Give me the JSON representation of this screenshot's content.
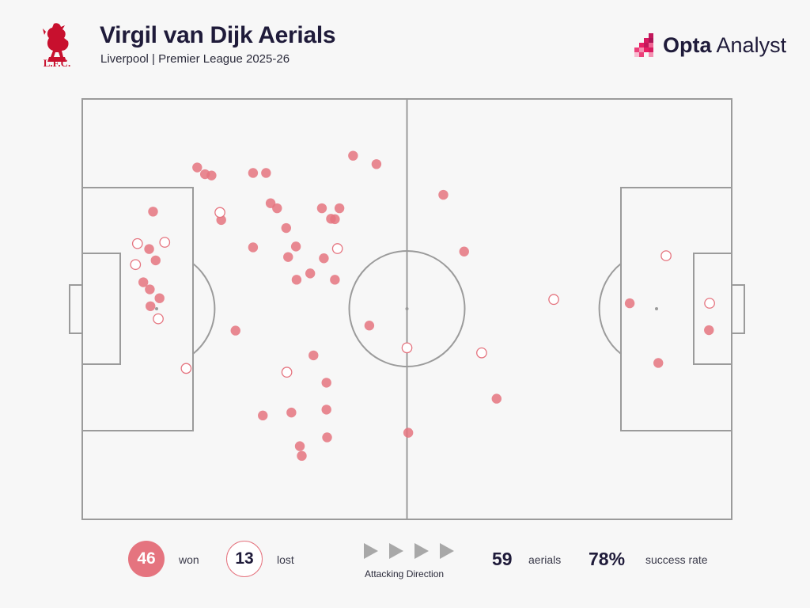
{
  "header": {
    "title": "Virgil van Dijk Aerials",
    "subtitle": "Liverpool | Premier League 2025-26",
    "crest_text": "L.F.C.",
    "brand_bold": "Opta",
    "brand_light": " Analyst"
  },
  "colors": {
    "won": "#e5747f",
    "lost_stroke": "#e5747f",
    "pitch_lines": "#9b9b9b",
    "background": "#f7f7f7"
  },
  "legend": {
    "won_count": "46",
    "won_label": "won",
    "lost_count": "13",
    "lost_label": "lost",
    "direction_label": "Attacking Direction",
    "aerials_count": "59",
    "aerials_label": "aerials",
    "success_rate": "78%",
    "success_label": "success rate"
  },
  "chart_data": {
    "type": "scatter",
    "title": "Virgil van Dijk Aerials",
    "subtitle": "Liverpool | Premier League 2025-26",
    "pitch": {
      "length": 100,
      "width": 100,
      "attacking_direction": "left-to-right"
    },
    "series": [
      {
        "name": "won",
        "points": [
          [
            17.7,
            16.3
          ],
          [
            18.9,
            17.9
          ],
          [
            19.9,
            18.2
          ],
          [
            26.3,
            17.6
          ],
          [
            28.3,
            17.6
          ],
          [
            41.7,
            13.5
          ],
          [
            45.3,
            15.5
          ],
          [
            10.9,
            26.8
          ],
          [
            21.4,
            28.8
          ],
          [
            29.0,
            24.8
          ],
          [
            30.0,
            26.0
          ],
          [
            31.4,
            30.7
          ],
          [
            36.9,
            26.0
          ],
          [
            39.6,
            26.0
          ],
          [
            38.9,
            28.6
          ],
          [
            38.3,
            28.5
          ],
          [
            10.3,
            35.7
          ],
          [
            11.3,
            38.4
          ],
          [
            26.3,
            35.3
          ],
          [
            31.7,
            37.6
          ],
          [
            32.9,
            35.1
          ],
          [
            37.2,
            37.9
          ],
          [
            35.1,
            41.5
          ],
          [
            33.0,
            43.0
          ],
          [
            38.9,
            43.0
          ],
          [
            9.4,
            43.6
          ],
          [
            10.4,
            45.3
          ],
          [
            11.9,
            47.4
          ],
          [
            10.5,
            49.3
          ],
          [
            23.6,
            55.1
          ],
          [
            44.2,
            53.9
          ],
          [
            35.6,
            61.0
          ],
          [
            37.6,
            67.5
          ],
          [
            27.8,
            75.3
          ],
          [
            32.2,
            74.6
          ],
          [
            37.6,
            73.9
          ],
          [
            37.7,
            80.5
          ],
          [
            33.5,
            82.6
          ],
          [
            33.8,
            84.9
          ],
          [
            50.2,
            79.4
          ],
          [
            55.6,
            22.8
          ],
          [
            58.8,
            36.3
          ],
          [
            63.8,
            71.3
          ],
          [
            84.3,
            48.6
          ],
          [
            88.7,
            62.8
          ],
          [
            96.5,
            55.0
          ]
        ]
      },
      {
        "name": "lost",
        "points": [
          [
            21.2,
            27.0
          ],
          [
            8.5,
            34.4
          ],
          [
            12.7,
            34.1
          ],
          [
            8.2,
            39.4
          ],
          [
            11.7,
            52.3
          ],
          [
            39.3,
            35.6
          ],
          [
            16.0,
            64.1
          ],
          [
            31.5,
            65.0
          ],
          [
            50.0,
            59.2
          ],
          [
            61.5,
            60.4
          ],
          [
            72.6,
            47.7
          ],
          [
            89.9,
            37.3
          ],
          [
            96.6,
            48.6
          ]
        ]
      }
    ]
  }
}
